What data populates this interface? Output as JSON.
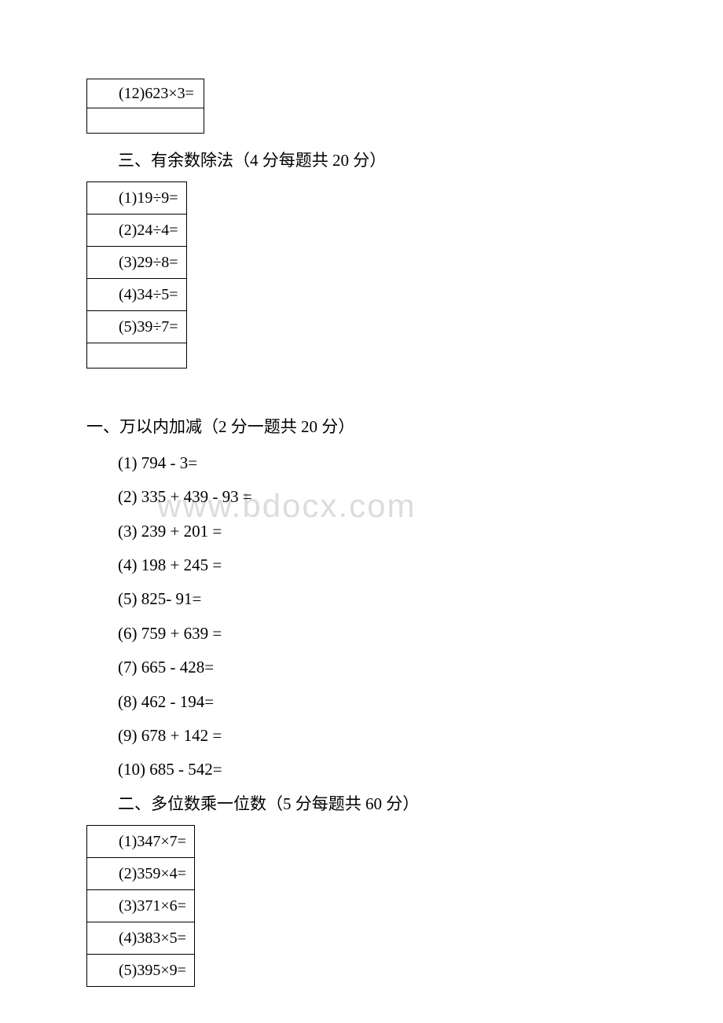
{
  "watermark_text": "www.bdocx.com",
  "small_table_top": {
    "row1": "(12)623×3=",
    "row2": ""
  },
  "section3": {
    "heading": "三、有余数除法（4 分每题共 20 分）",
    "items": [
      "(1)19÷9=",
      "(2)24÷4=",
      "(3)29÷8=",
      "(4)34÷5=",
      "(5)39÷7="
    ]
  },
  "section1": {
    "heading": "一、万以内加减（2 分一题共 20 分）",
    "items": [
      "(1) 794 - 3=",
      "(2) 335 + 439 - 93 =",
      "(3) 239 + 201 =",
      "(4) 198 + 245 =",
      "(5) 825- 91=",
      "(6) 759 + 639 =",
      "(7) 665 - 428=",
      "(8) 462 - 194=",
      "(9) 678 + 142 =",
      "(10) 685 - 542="
    ]
  },
  "section2": {
    "heading": "二、多位数乘一位数（5 分每题共 60 分）",
    "items": [
      "(1)347×7=",
      "(2)359×4=",
      "(3)371×6=",
      "(4)383×5=",
      "(5)395×9="
    ]
  }
}
